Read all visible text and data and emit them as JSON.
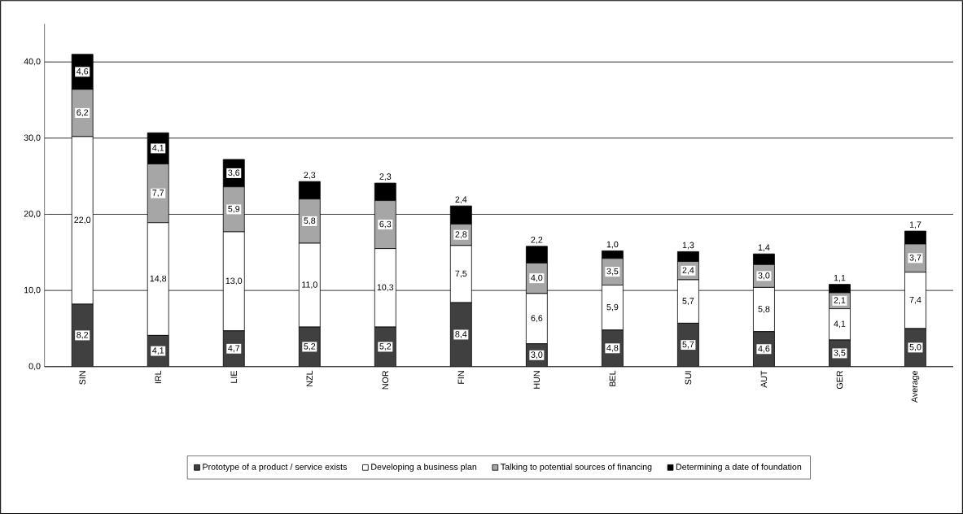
{
  "chart_data": {
    "type": "bar",
    "stacked": true,
    "categories": [
      "SIN",
      "IRL",
      "LIE",
      "NZL",
      "NOR",
      "FIN",
      "HUN",
      "BEL",
      "SUI",
      "AUT",
      "GER",
      "Average"
    ],
    "series": [
      {
        "name": "Prototype of a product / service exists",
        "color": "#404040",
        "values": [
          8.2,
          4.1,
          4.7,
          5.2,
          5.2,
          8.4,
          3.0,
          4.8,
          5.7,
          4.6,
          3.5,
          5.0
        ],
        "value_labels": [
          "8,2",
          "4,1",
          "4,7",
          "5,2",
          "5,2",
          "8,4",
          "3,0",
          "4,8",
          "5,7",
          "4,6",
          "3,5",
          "5,0"
        ]
      },
      {
        "name": "Developing a business plan",
        "color": "#ffffff",
        "values": [
          22.0,
          14.8,
          13.0,
          11.0,
          10.3,
          7.5,
          6.6,
          5.9,
          5.7,
          5.8,
          4.1,
          7.4
        ],
        "value_labels": [
          "22,0",
          "14,8",
          "13,0",
          "11,0",
          "10,3",
          "7,5",
          "6,6",
          "5,9",
          "5,7",
          "5,8",
          "4,1",
          "7,4"
        ]
      },
      {
        "name": "Talking to potential sources of financing",
        "color": "#a6a6a6",
        "values": [
          6.2,
          7.7,
          5.9,
          5.8,
          6.3,
          2.8,
          4.0,
          3.5,
          2.4,
          3.0,
          2.1,
          3.7
        ],
        "value_labels": [
          "6,2",
          "7,7",
          "5,9",
          "5,8",
          "6,3",
          "2,8",
          "4,0",
          "3,5",
          "2,4",
          "3,0",
          "2,1",
          "3,7"
        ]
      },
      {
        "name": "Determining a date of foundation",
        "color": "#000000",
        "values": [
          4.6,
          4.1,
          3.6,
          2.3,
          2.3,
          2.4,
          2.2,
          1.0,
          1.3,
          1.4,
          1.1,
          1.7
        ],
        "value_labels": [
          "4,6",
          "4,1",
          "3,6",
          "2,3",
          "2,3",
          "2,4",
          "2,2",
          "1,0",
          "1,3",
          "1,4",
          "1,1",
          "1,7"
        ]
      }
    ],
    "ylim": [
      0,
      45
    ],
    "yticks": [
      {
        "value": 0,
        "label": "0,0"
      },
      {
        "value": 10,
        "label": "10,0"
      },
      {
        "value": 20,
        "label": "20,0"
      },
      {
        "value": 30,
        "label": "30,0"
      },
      {
        "value": 40,
        "label": "40,0"
      }
    ],
    "grid": "y",
    "legend": "bottom"
  }
}
